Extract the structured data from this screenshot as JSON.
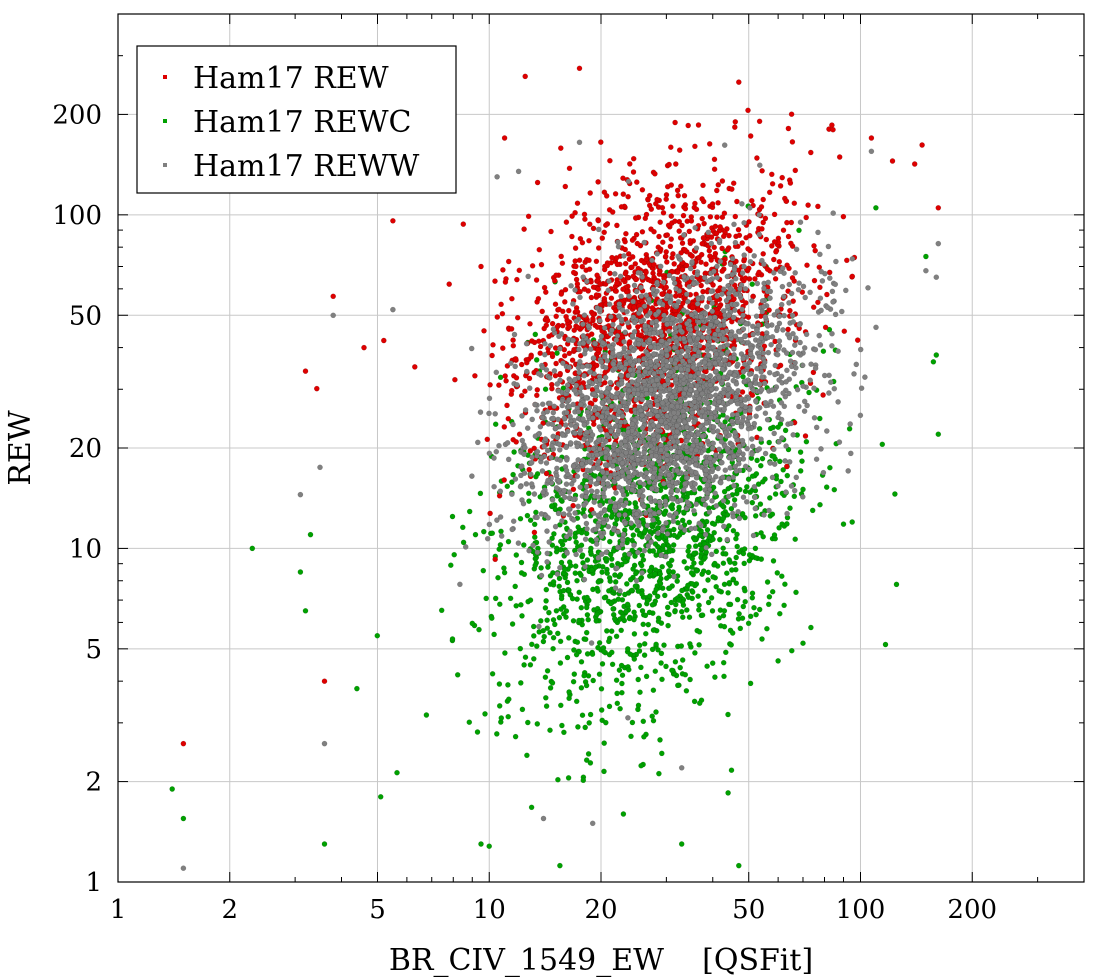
{
  "chart_data": {
    "type": "scatter",
    "xlabel": "BR_CIV_1549_EW    [QSFit]",
    "ylabel": "REW",
    "xscale": "log",
    "yscale": "log",
    "xlim": [
      1,
      400
    ],
    "ylim": [
      1,
      400
    ],
    "x_ticks": [
      1,
      2,
      5,
      10,
      20,
      50,
      100,
      200
    ],
    "y_ticks": [
      1,
      2,
      5,
      10,
      20,
      50,
      100,
      200
    ],
    "x_tick_labels": [
      "1",
      "2",
      "5",
      "10",
      "20",
      "50",
      "100",
      "200"
    ],
    "y_tick_labels": [
      "1",
      "2",
      "5",
      "10",
      "20",
      "50",
      "100",
      "200"
    ],
    "grid": true,
    "legend_position": "top-left",
    "series": [
      {
        "name": "Ham17 REW",
        "color": "#dd0000",
        "cloud": {
          "n": 1700,
          "x_center": 28,
          "x_sigma_dex": 0.19,
          "y_center": 48,
          "y_sigma_dex": 0.21,
          "correlation": 0.35
        },
        "values": [
          [
            1.5,
            2.6
          ],
          [
            3.2,
            34
          ],
          [
            3.8,
            57
          ],
          [
            5.5,
            96
          ],
          [
            12.5,
            260
          ],
          [
            17.5,
            275
          ],
          [
            47,
            250
          ],
          [
            46,
            190
          ],
          [
            11,
            170
          ],
          [
            13.5,
            125
          ],
          [
            107,
            170
          ],
          [
            122,
            145
          ],
          [
            140,
            142
          ],
          [
            162,
            105
          ],
          [
            3.6,
            4
          ],
          [
            7.8,
            62
          ],
          [
            9.5,
            70
          ],
          [
            4.6,
            40
          ],
          [
            5.2,
            42
          ],
          [
            6.3,
            35
          ]
        ]
      },
      {
        "name": "Ham17 REWC",
        "color": "#00a000",
        "cloud": {
          "n": 1600,
          "x_center": 27,
          "x_sigma_dex": 0.2,
          "y_center": 11,
          "y_sigma_dex": 0.27,
          "correlation": 0.3
        },
        "values": [
          [
            1.4,
            1.9
          ],
          [
            1.5,
            1.55
          ],
          [
            2.3,
            10
          ],
          [
            3.6,
            1.3
          ],
          [
            5.1,
            1.8
          ],
          [
            9.5,
            1.3
          ],
          [
            10,
            1.28
          ],
          [
            15.5,
            1.12
          ],
          [
            33,
            1.3
          ],
          [
            47,
            1.12
          ],
          [
            44,
            1.85
          ],
          [
            125,
            7.8
          ],
          [
            160,
            38
          ],
          [
            162,
            22
          ],
          [
            150,
            75
          ],
          [
            110,
            105
          ],
          [
            3.1,
            8.5
          ],
          [
            3.3,
            11
          ],
          [
            4.4,
            3.8
          ],
          [
            3.2,
            6.5
          ],
          [
            85,
            15
          ],
          [
            95,
            12
          ],
          [
            70,
            5.2
          ],
          [
            60,
            4.6
          ]
        ]
      },
      {
        "name": "Ham17 REWW",
        "color": "#808080",
        "cloud": {
          "n": 2600,
          "x_center": 30,
          "x_sigma_dex": 0.18,
          "y_center": 27,
          "y_sigma_dex": 0.2,
          "correlation": 0.35
        },
        "values": [
          [
            1.5,
            1.1
          ],
          [
            3.6,
            2.6
          ],
          [
            12,
            135
          ],
          [
            10.5,
            130
          ],
          [
            17.5,
            165
          ],
          [
            107,
            155
          ],
          [
            162,
            82
          ],
          [
            160,
            65
          ],
          [
            150,
            68
          ],
          [
            3.8,
            50
          ],
          [
            5.5,
            52
          ],
          [
            3.1,
            14.5
          ],
          [
            3.5,
            17.5
          ],
          [
            33,
            2.2
          ],
          [
            19,
            1.5
          ],
          [
            14,
            1.55
          ]
        ]
      }
    ]
  }
}
